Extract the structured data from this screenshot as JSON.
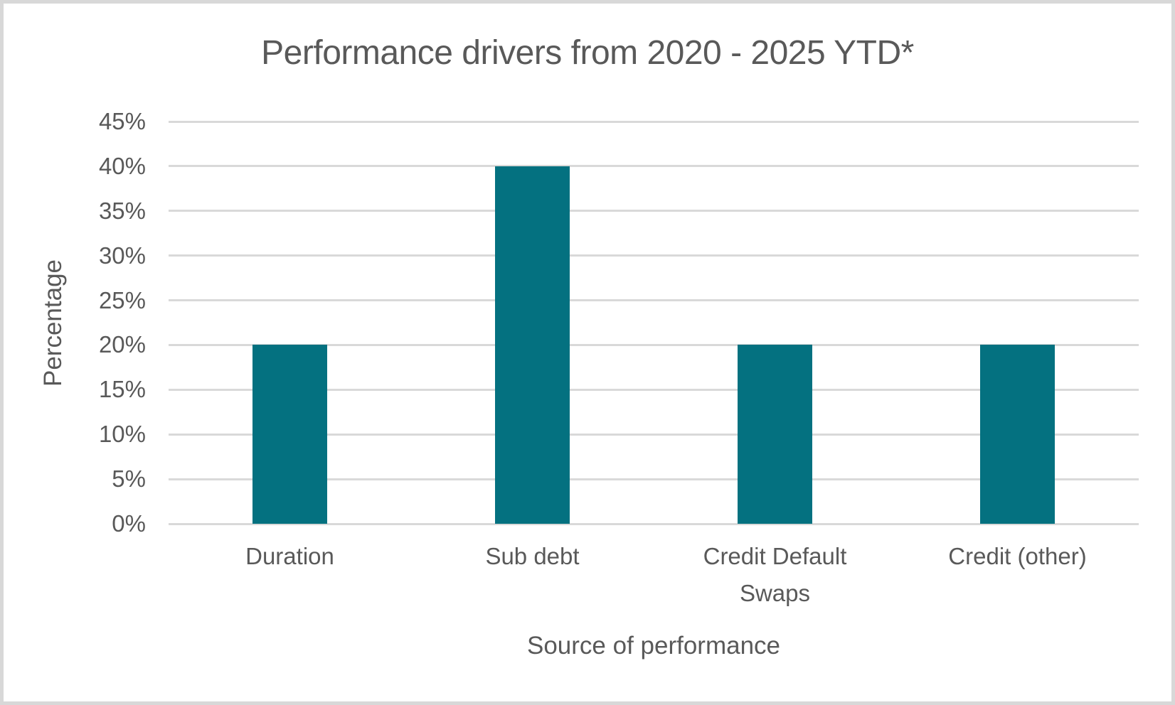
{
  "chart_data": {
    "type": "bar",
    "title": "Performance drivers from 2020 - 2025 YTD*",
    "categories": [
      "Duration",
      "Sub debt",
      "Credit Default Swaps",
      "Credit (other)"
    ],
    "values": [
      20,
      40,
      20,
      20
    ],
    "xlabel": "Source of performance",
    "ylabel": "Percentage",
    "ylim": [
      0,
      45
    ],
    "ytick_step": 5,
    "ytick_suffix": "%",
    "ytick_labels": [
      "45%",
      "40%",
      "35%",
      "30%",
      "25%",
      "20%",
      "15%",
      "10%",
      "5%",
      "0%"
    ],
    "grid": true,
    "legend_position": "none",
    "bar_color": "#047180",
    "gridline_color": "#d9d9d9",
    "text_color": "#595959",
    "frame_border_color": "#d8d8d8",
    "background_color": "#ffffff"
  }
}
